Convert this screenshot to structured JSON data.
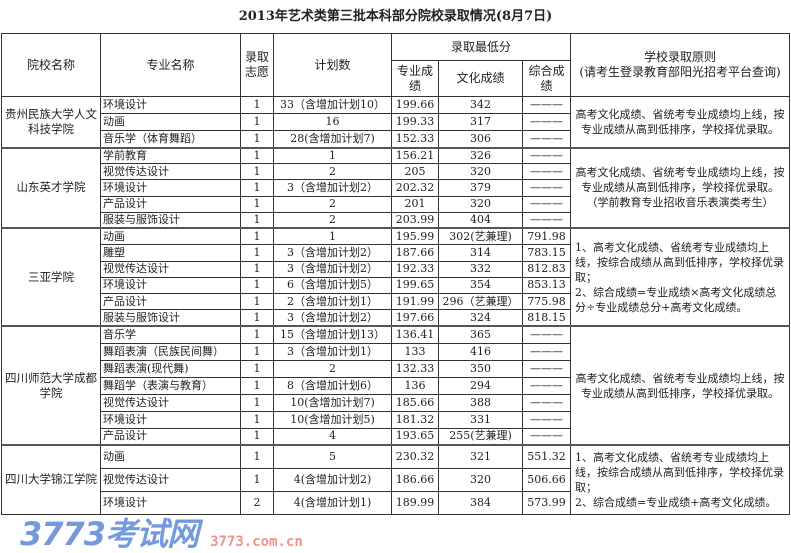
{
  "title": "2013年艺术类第三批本科部分院校录取情况(8月7日)",
  "headers": {
    "school": "院校名称",
    "major": "专业名称",
    "choice": "录取志愿",
    "plan": "计划数",
    "min_score": "录取最低分",
    "pro": "专业成绩",
    "culture": "文化成绩",
    "total": "综合成绩",
    "rule": "学校录取原则",
    "rule_note": "(请考生登录教育部阳光招考平台查询)"
  },
  "groups": [
    {
      "school": "贵州民族大学人文科技学院",
      "rule": "高考文化成绩、省统考专业成绩均上线，按专业成绩从高到低排序，学校择优录取。",
      "rows": [
        [
          "环境设计",
          "1",
          "33（含增加计划10）",
          "199.66",
          "342",
          "———"
        ],
        [
          "动画",
          "1",
          "16",
          "199.33",
          "317",
          "———"
        ],
        [
          "音乐学（体育舞蹈）",
          "1",
          "28(含增加计划7)",
          "152.33",
          "306",
          "———"
        ]
      ]
    },
    {
      "school": "山东英才学院",
      "rule": "高考文化成绩、省统考专业成绩均上线，按专业成绩从高到低排序，学校择优录取。（学前教育专业招收音乐表演类考生）",
      "rows": [
        [
          "学前教育",
          "1",
          "1",
          "156.21",
          "326",
          "———"
        ],
        [
          "视觉传达设计",
          "1",
          "2",
          "205",
          "320",
          "———"
        ],
        [
          "环境设计",
          "1",
          "3（含增加计划2）",
          "202.32",
          "379",
          "———"
        ],
        [
          "产品设计",
          "1",
          "2",
          "201",
          "320",
          "———"
        ],
        [
          "服装与服饰设计",
          "1",
          "2",
          "203.99",
          "404",
          "———"
        ]
      ]
    },
    {
      "school": "三亚学院",
      "rule": "1、高考文化成绩、省统考专业成绩均上线，按综合成绩从高到低排序，学校择优录取；\n2、综合成绩=专业成绩×高考文化成绩总分÷专业成绩总分+高考文化成绩。",
      "rows": [
        [
          "动画",
          "1",
          "1",
          "195.99",
          "302(艺兼理)",
          "791.98"
        ],
        [
          "雕塑",
          "1",
          "3（含增加计划2）",
          "187.66",
          "314",
          "783.15"
        ],
        [
          "视觉传达设计",
          "1",
          "3（含增加计划2）",
          "192.33",
          "332",
          "812.83"
        ],
        [
          "环境设计",
          "1",
          "6（含增加计划5）",
          "199.65",
          "354",
          "853.13"
        ],
        [
          "产品设计",
          "1",
          "2（含增加计划1）",
          "191.99",
          "296（艺兼理）",
          "775.98"
        ],
        [
          "服装与服饰设计",
          "1",
          "3（含增加计划2）",
          "197.66",
          "324",
          "818.15"
        ]
      ]
    },
    {
      "school": "四川师范大学成都学院",
      "rule": "高考文化成绩、省统考专业成绩均上线，按专业成绩从高到低排序，学校择优录取。",
      "rows": [
        [
          "音乐学",
          "1",
          "15（含增加计划13）",
          "136.41",
          "365",
          "———"
        ],
        [
          "舞蹈表演（民族民间舞）",
          "1",
          "3（含增加计划1）",
          "133",
          "416",
          "———"
        ],
        [
          "舞蹈表演(现代舞)",
          "1",
          "2",
          "132.33",
          "350",
          "———"
        ],
        [
          "舞蹈学（表演与教育）",
          "1",
          "8（含增加计划6）",
          "136",
          "294",
          "———"
        ],
        [
          "视觉传达设计",
          "1",
          "10(含增加计划7)",
          "185.66",
          "388",
          "———"
        ],
        [
          "环境设计",
          "1",
          "10(含增加计划5)",
          "181.32",
          "331",
          "———"
        ],
        [
          "产品设计",
          "1",
          "4",
          "193.65",
          "255(艺兼理)",
          "———"
        ]
      ]
    },
    {
      "school": "四川大学锦江学院",
      "rule": "1、高考文化成绩、省统考专业成绩均上线，按综合成绩从高到低排序，学校择优录取；\n2、综合成绩=专业成绩+高考文化成绩。",
      "rows": [
        [
          "动画",
          "1",
          "5",
          "230.32",
          "321",
          "551.32"
        ],
        [
          "视觉传达设计",
          "1",
          "4(含增加计划2)",
          "186.66",
          "320",
          "506.66"
        ],
        [
          "环境设计",
          "2",
          "4(含增加计划1)",
          "189.99",
          "384",
          "573.99"
        ]
      ]
    }
  ],
  "watermark": {
    "logo": "3773考试网",
    "url": "3773.com.cn"
  }
}
